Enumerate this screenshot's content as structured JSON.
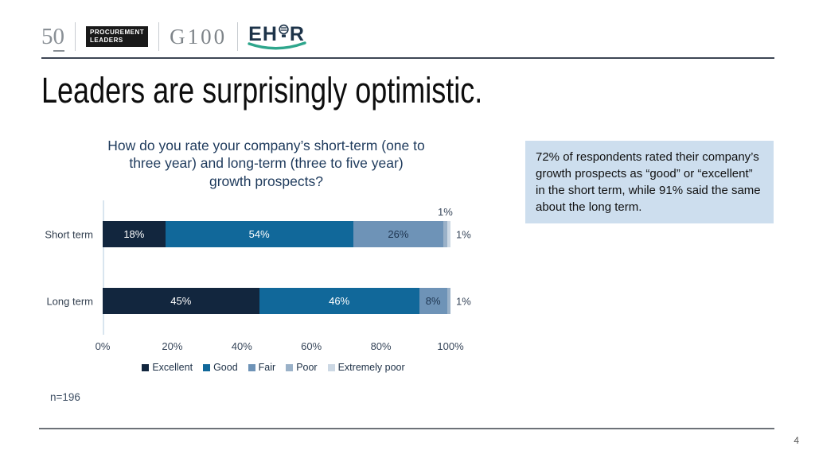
{
  "header": {
    "logos": {
      "fifty": {
        "five": "5",
        "zero": "0"
      },
      "procurement_leaders": {
        "line1": "PROCUREMENT",
        "line2": "LEADERS"
      },
      "g100": "G100",
      "ehir": {
        "pre": "EH",
        "post": "R"
      },
      "ehir_accent_color": "#2ea68c"
    }
  },
  "title": "Leaders are surprisingly optimistic.",
  "callout": {
    "text": "72% of respondents rated their company’s growth prospects as “good” or “excellent” in the short term, while 91% said the same about the long term.",
    "bg_color": "#cddeee"
  },
  "chart_data": {
    "type": "bar",
    "orientation": "horizontal",
    "stacked": true,
    "title": "How do you rate your company’s short-term (one to three year) and long-term (three to five year) growth prospects?",
    "title_lines": [
      "How do you rate your company’s short-term (one to",
      "three year) and long-term (three to five year)",
      "growth prospects?"
    ],
    "categories": [
      "Short term",
      "Long term"
    ],
    "series": [
      {
        "name": "Excellent",
        "color": "#12263e",
        "label_color": "#ffffff",
        "values": [
          18,
          45
        ]
      },
      {
        "name": "Good",
        "color": "#11689a",
        "label_color": "#ffffff",
        "values": [
          54,
          46
        ]
      },
      {
        "name": "Fair",
        "color": "#6e93b7",
        "label_color": "#1e3550",
        "values": [
          26,
          8
        ]
      },
      {
        "name": "Poor",
        "color": "#9ab1c8",
        "label_color": "#37465a",
        "values": [
          1,
          1
        ]
      },
      {
        "name": "Extremely poor",
        "color": "#ccd8e4",
        "label_color": "#37465a",
        "values": [
          1,
          0
        ]
      }
    ],
    "rows": [
      {
        "category": "Short term",
        "segments": [
          {
            "series": "Excellent",
            "value": 18,
            "label": "18%",
            "placement": "inside"
          },
          {
            "series": "Good",
            "value": 54,
            "label": "54%",
            "placement": "inside"
          },
          {
            "series": "Fair",
            "value": 26,
            "label": "26%",
            "placement": "inside"
          },
          {
            "series": "Poor",
            "value": 1,
            "label": "1%",
            "placement": "above"
          },
          {
            "series": "Extremely poor",
            "value": 1,
            "label": "1%",
            "placement": "right"
          }
        ]
      },
      {
        "category": "Long term",
        "segments": [
          {
            "series": "Excellent",
            "value": 45,
            "label": "45%",
            "placement": "inside"
          },
          {
            "series": "Good",
            "value": 46,
            "label": "46%",
            "placement": "inside"
          },
          {
            "series": "Fair",
            "value": 8,
            "label": "8%",
            "placement": "inside"
          },
          {
            "series": "Poor",
            "value": 1,
            "label": "1%",
            "placement": "right"
          },
          {
            "series": "Extremely poor",
            "value": 0,
            "label": "",
            "placement": "none"
          }
        ]
      }
    ],
    "x_ticks": [
      "0%",
      "20%",
      "40%",
      "60%",
      "80%",
      "100%"
    ],
    "xlim": [
      0,
      100
    ],
    "grid": false,
    "legend_position": "bottom",
    "xlabel": "",
    "ylabel": "",
    "note": "n=196"
  },
  "footer": {
    "page_number": "4"
  }
}
